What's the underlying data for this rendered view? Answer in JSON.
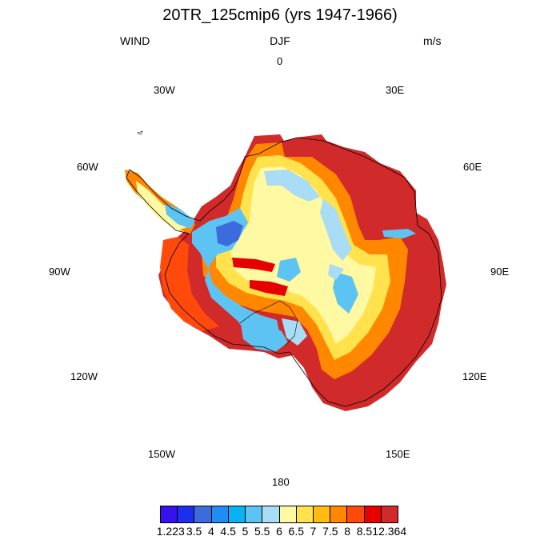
{
  "header": {
    "title": "20TR_125cmip6 (yrs 1947-1966)",
    "variable": "WIND",
    "season": "DJF",
    "units": "m/s"
  },
  "longitude_labels": {
    "lon_0": "0",
    "lon_30e": "30E",
    "lon_60e": "60E",
    "lon_90e": "90E",
    "lon_120e": "120E",
    "lon_150e": "150E",
    "lon_180": "180",
    "lon_150w": "150W",
    "lon_120w": "120W",
    "lon_90w": "90W",
    "lon_60w": "60W",
    "lon_30w": "30W"
  },
  "colorbar": {
    "colors": [
      "#3a10ee",
      "#1c2ff0",
      "#3c6cdc",
      "#1f8df5",
      "#09b2f2",
      "#5dc3f3",
      "#a9dcf5",
      "#fff9a3",
      "#ffe24d",
      "#ffbb11",
      "#ff8800",
      "#ff4a0c",
      "#e60000",
      "#d02a2a"
    ],
    "labels": [
      "1.223",
      "3.5",
      "4",
      "4.5",
      "5",
      "5.5",
      "6",
      "6.5",
      "7",
      "7.5",
      "8",
      "8.5",
      "12.364"
    ]
  },
  "map_data": {
    "projection": "south-polar-stereographic",
    "field": "WIND",
    "regions": [
      {
        "name": "east-antarctic-coast",
        "level": "12.364"
      },
      {
        "name": "wilkes-land-coast",
        "level": "12.364"
      },
      {
        "name": "east-antarctic-plateau-ring",
        "level": "7"
      },
      {
        "name": "interior-plateau",
        "level": "6"
      },
      {
        "name": "west-antarctica",
        "level": "5"
      },
      {
        "name": "antarctic-peninsula",
        "level": "6.5"
      }
    ]
  }
}
